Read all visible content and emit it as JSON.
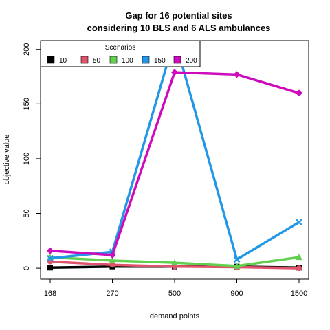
{
  "chart_data": {
    "type": "line",
    "title": "Gap for 16 potential sites",
    "subtitle": "considering 10 BLS and 6 ALS ambulances",
    "xlabel": "demand points",
    "ylabel": "objective value",
    "categories": [
      "168",
      "270",
      "500",
      "900",
      "1500"
    ],
    "yticks": [
      "0",
      "50",
      "100",
      "150",
      "200"
    ],
    "ylim": [
      -10,
      208
    ],
    "grid": false,
    "legend": {
      "title": "Scenarios",
      "placement": "top-left",
      "entries": [
        "10",
        "50",
        "100",
        "150",
        "200"
      ]
    },
    "series": [
      {
        "name": "10",
        "color": "#000000",
        "marker": "square",
        "values": [
          0.5,
          1.5,
          1.5,
          1.5,
          0.5
        ]
      },
      {
        "name": "50",
        "color": "#DF536B",
        "marker": "circle",
        "values": [
          6,
          3,
          1.5,
          1,
          0
        ]
      },
      {
        "name": "100",
        "color": "#61D04F",
        "marker": "triangle",
        "values": [
          10,
          7,
          5,
          2,
          10
        ]
      },
      {
        "name": "150",
        "color": "#2297E6",
        "marker": "x",
        "values": [
          9,
          15,
          210,
          8,
          42
        ]
      },
      {
        "name": "200",
        "color": "#CD0BBC",
        "marker": "diamond",
        "values": [
          16,
          12,
          179,
          177,
          160
        ]
      }
    ]
  }
}
